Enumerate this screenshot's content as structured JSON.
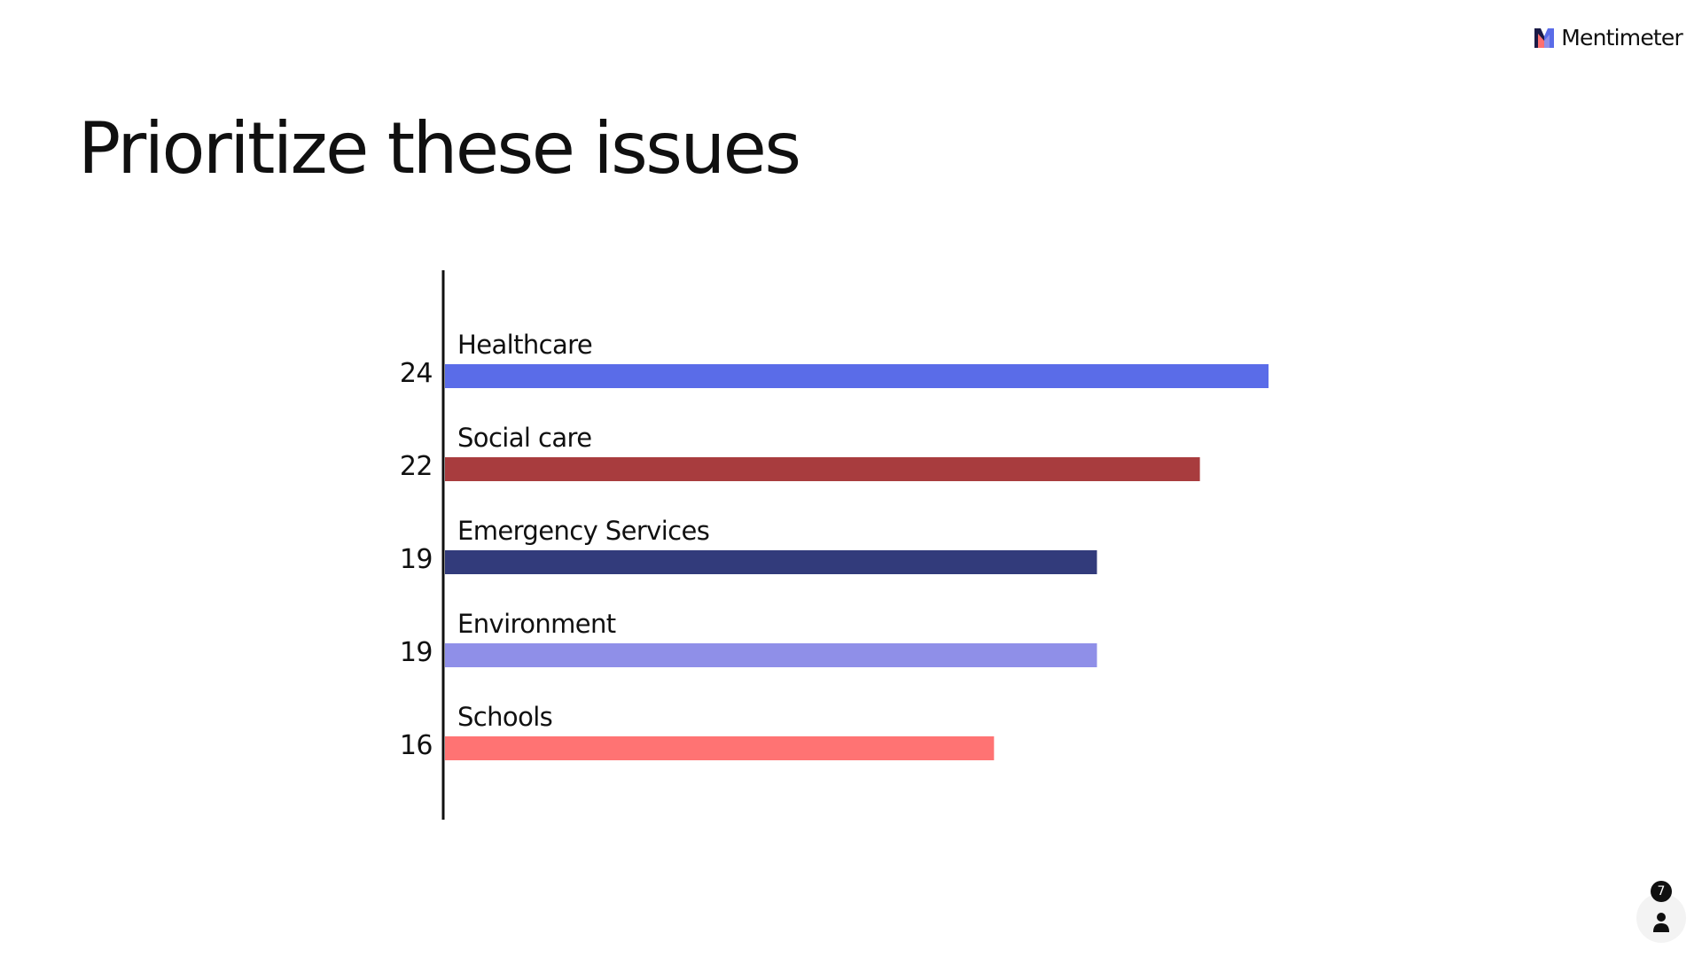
{
  "brand": {
    "name": "Mentimeter"
  },
  "slide": {
    "title": "Prioritize these issues"
  },
  "audience": {
    "count": "7",
    "icon": "person-icon"
  },
  "chart_data": {
    "type": "bar",
    "orientation": "horizontal",
    "title": "Prioritize these issues",
    "categories": [
      "Healthcare",
      "Social care",
      "Emergency Services",
      "Environment",
      "Schools"
    ],
    "values": [
      24,
      22,
      19,
      19,
      16
    ],
    "colors": [
      "#5a6ce8",
      "#a83c3e",
      "#323b7b",
      "#8f8fe8",
      "#ff7373"
    ],
    "xlim": [
      0,
      24
    ],
    "grid": false,
    "legend": "none"
  }
}
